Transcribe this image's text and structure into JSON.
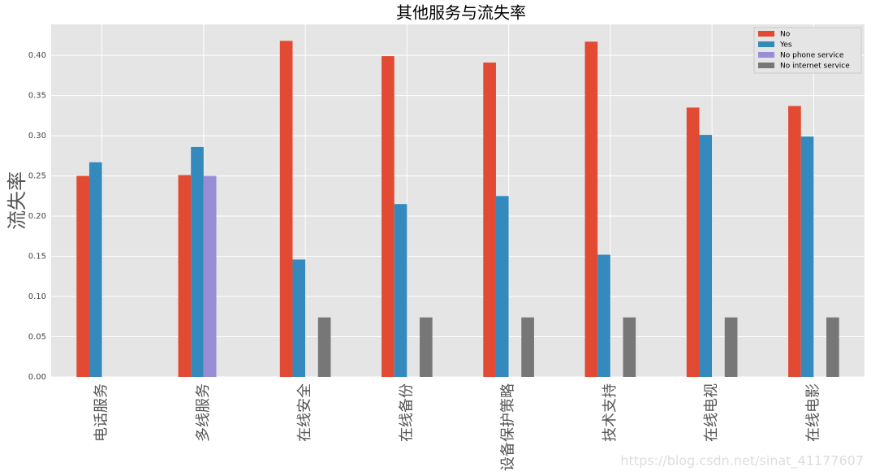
{
  "chart_data": {
    "type": "bar",
    "title": "其他服务与流失率",
    "y_label": "流失率",
    "categories": [
      "电话服务",
      "多线服务",
      "在线安全",
      "在线备份",
      "设备保护策略",
      "技术支持",
      "在线电视",
      "在线电影"
    ],
    "series": [
      {
        "name": "No",
        "color": "#E24A33",
        "values": [
          0.25,
          0.251,
          0.418,
          0.399,
          0.391,
          0.417,
          0.335,
          0.337
        ]
      },
      {
        "name": "Yes",
        "color": "#348ABD",
        "values": [
          0.267,
          0.286,
          0.146,
          0.215,
          0.225,
          0.152,
          0.301,
          0.299
        ]
      },
      {
        "name": "No phone service",
        "color": "#988ED5",
        "values": [
          null,
          0.25,
          null,
          null,
          null,
          null,
          null,
          null
        ]
      },
      {
        "name": "No internet service",
        "color": "#777777",
        "values": [
          null,
          null,
          0.074,
          0.074,
          0.074,
          0.074,
          0.074,
          0.074
        ]
      }
    ],
    "ylim": [
      0,
      0.4385
    ],
    "yticks": [
      {
        "value": 0,
        "label": "0.00"
      },
      {
        "value": 0.05,
        "label": "0.05"
      },
      {
        "value": 0.1,
        "label": "0.10"
      },
      {
        "value": 0.15,
        "label": "0.15"
      },
      {
        "value": 0.2,
        "label": "0.20"
      },
      {
        "value": 0.25,
        "label": "0.25"
      },
      {
        "value": 0.3,
        "label": "0.30"
      },
      {
        "value": 0.35,
        "label": "0.35"
      },
      {
        "value": 0.4,
        "label": "0.40"
      }
    ],
    "grid": true,
    "legend_position": "upper-right",
    "watermark": "https://blog.csdn.net/sinat_41177607"
  }
}
